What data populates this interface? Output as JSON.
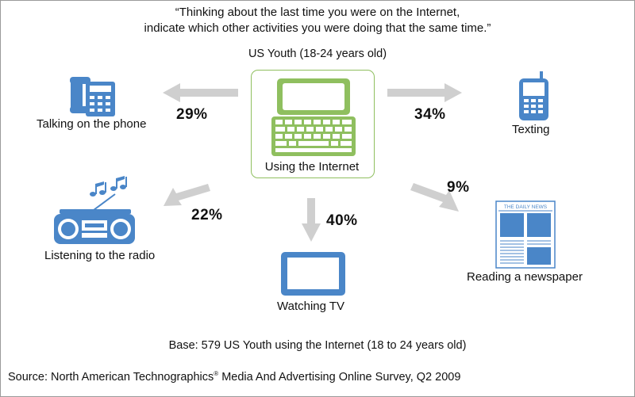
{
  "header": {
    "question_line1": "“Thinking about the last time you were on the Internet,",
    "question_line2": "indicate which other activities you were doing that the same time.”",
    "subtitle": "US Youth (18-24 years old)"
  },
  "center": {
    "label": "Using the Internet",
    "icon": "laptop-icon"
  },
  "activities": [
    {
      "label": "Talking on the phone",
      "percent": "29%",
      "icon": "desk-phone-icon"
    },
    {
      "label": "Texting",
      "percent": "34%",
      "icon": "cell-phone-icon"
    },
    {
      "label": "Listening to the radio",
      "percent": "22%",
      "icon": "boombox-icon"
    },
    {
      "label": "Watching TV",
      "percent": "40%",
      "icon": "tv-icon"
    },
    {
      "label": "Reading a newspaper",
      "percent": "9%",
      "icon": "newspaper-icon",
      "masthead": "THE DAILY NEWS"
    }
  ],
  "footer": {
    "base": "Base: 579 US Youth using the Internet (18 to 24 years old)",
    "source": "Source: North American Technographics",
    "source_mark": "®",
    "source_rest": " Media And Advertising Online Survey, Q2 2009"
  },
  "colors": {
    "icon_blue": "#4a86c8",
    "laptop_green": "#8fbf5f",
    "arrow_gray": "#cfcfcf",
    "text": "#111111"
  }
}
